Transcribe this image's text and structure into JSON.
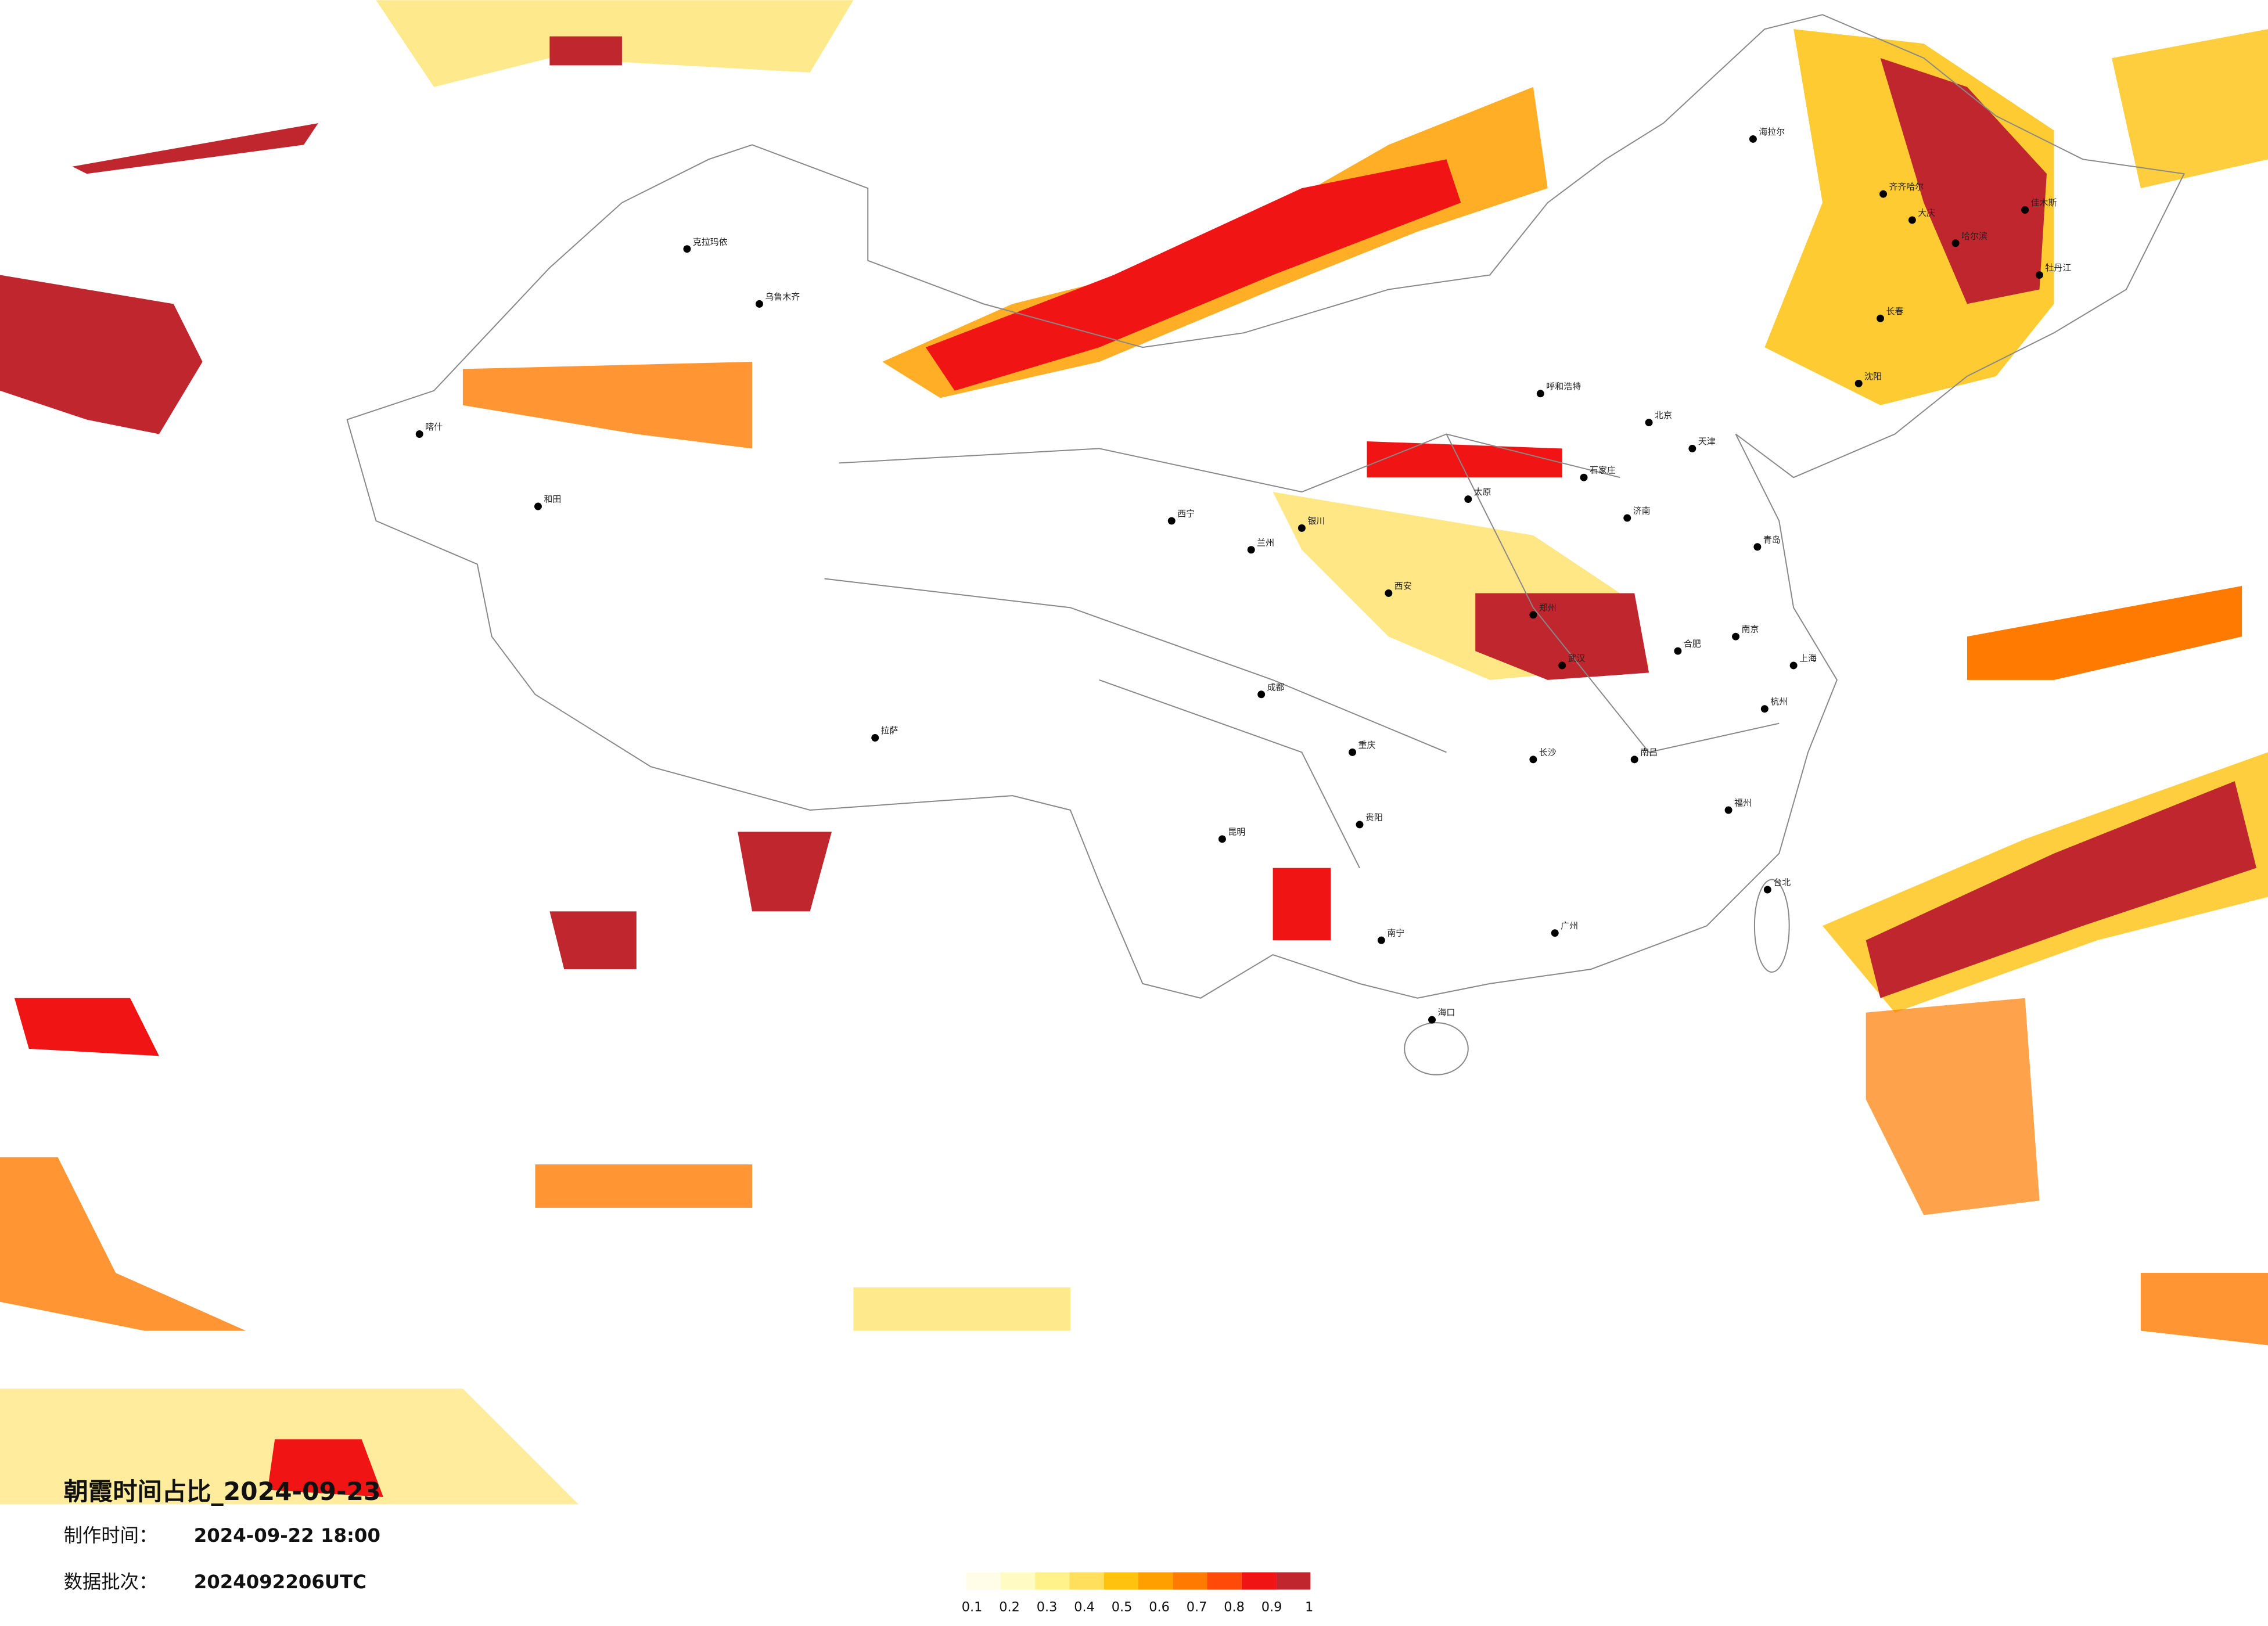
{
  "map": {
    "title": "朝霞时间占比_2024-09-23",
    "made_label": "制作时间：",
    "made_value": "2024-09-22 18:00",
    "batch_label": "数据批次：",
    "batch_value": "2024092206UTC",
    "legend": {
      "ticks": [
        0.1,
        0.2,
        0.3,
        0.4,
        0.5,
        0.6,
        0.7,
        0.8,
        0.9,
        1
      ],
      "colors": [
        "#fffde8",
        "#fffbc2",
        "#fff28a",
        "#ffdf5c",
        "#ffc20e",
        "#ffa000",
        "#ff7a00",
        "#ff4a0a",
        "#f01414",
        "#c0262d"
      ]
    },
    "cities": [
      "海拉尔",
      "齐齐哈尔",
      "大庆",
      "哈尔滨",
      "佳木斯",
      "牡丹江",
      "长春",
      "沈阳",
      "呼和浩特",
      "北京",
      "天津",
      "石家庄",
      "太原",
      "济南",
      "青岛",
      "郑州",
      "西安",
      "兰州",
      "西宁",
      "银川",
      "乌鲁木齐",
      "克拉玛依",
      "喀什",
      "和田",
      "拉萨",
      "成都",
      "重庆",
      "贵阳",
      "昆明",
      "南宁",
      "长沙",
      "武汉",
      "合肥",
      "南京",
      "上海",
      "杭州",
      "南昌",
      "福州",
      "台北",
      "广州",
      "海口"
    ]
  }
}
